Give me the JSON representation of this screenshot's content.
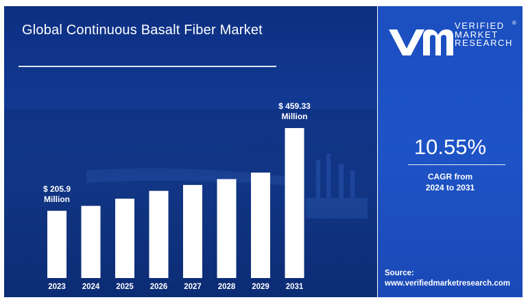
{
  "title": "Global Continuous Basalt Fiber Market",
  "brand": {
    "line1": "VERIFIED",
    "line2": "MARKET",
    "line3": "RESEARCH",
    "registered": "®"
  },
  "cagr": {
    "value": "10.55%",
    "label_line1": "CAGR from",
    "label_line2": "2024 to 2031"
  },
  "source": {
    "label": "Source:",
    "url": "www.verifiedmarketresearch.com"
  },
  "colors": {
    "bar": "#ffffff",
    "left_panel": "#123a93",
    "right_panel": "#1e53c6"
  },
  "chart_data": {
    "type": "bar",
    "title": "Global Continuous Basalt Fiber Market",
    "categories": [
      "2023",
      "2024",
      "2025",
      "2026",
      "2027",
      "2028",
      "2029",
      "2031"
    ],
    "values": [
      205.9,
      221,
      243,
      267,
      285,
      303,
      323,
      459.33
    ],
    "unit": "Million",
    "annotations": [
      {
        "category": "2023",
        "line1": "$ 205.9",
        "line2": "Million"
      },
      {
        "category": "2031",
        "line1": "$ 459.33",
        "line2": "Million"
      }
    ],
    "xlabel": "",
    "ylabel": "",
    "grid": false,
    "legend": "none"
  }
}
